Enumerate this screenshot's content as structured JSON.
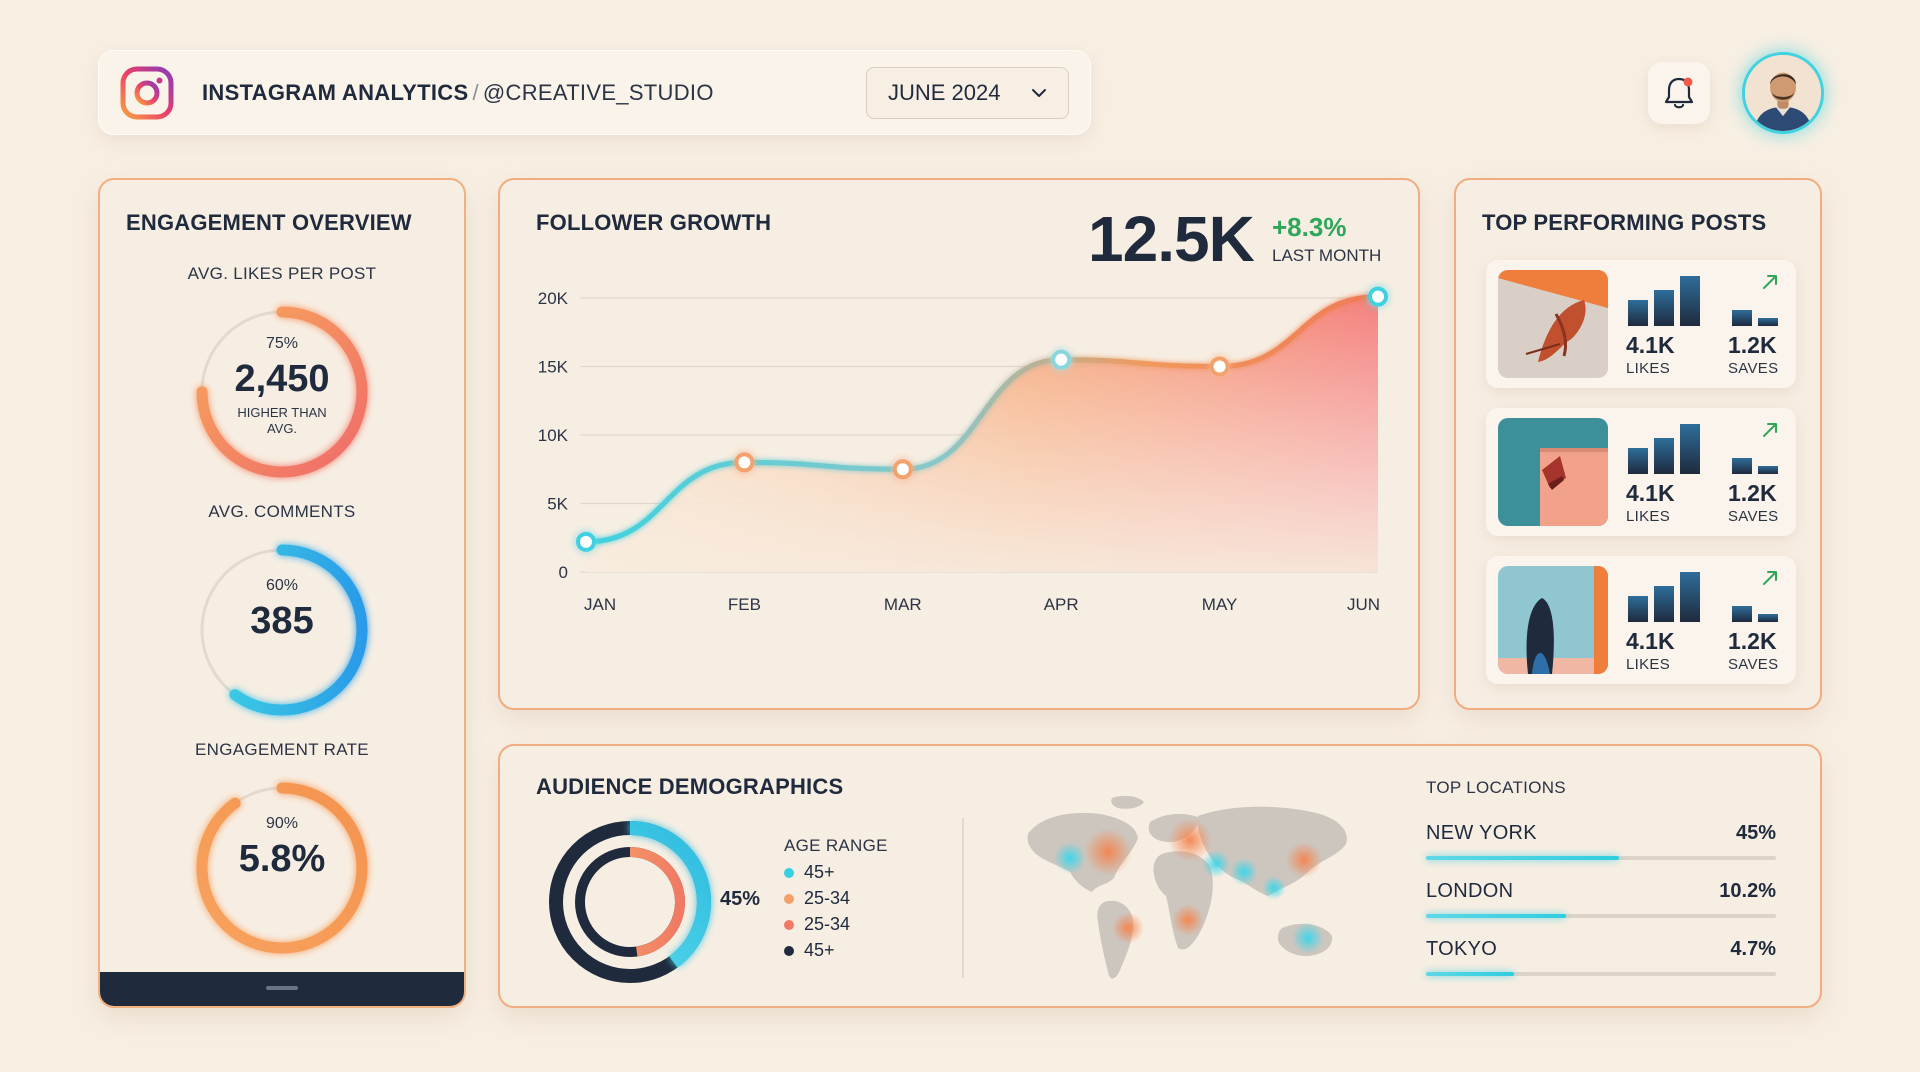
{
  "header": {
    "title": "INSTAGRAM ANALYTICS",
    "separator": "/",
    "handle": "@CREATIVE_STUDIO",
    "month": "JUNE 2024",
    "icons": [
      "instagram-logo-icon",
      "chevron-down-icon",
      "bell-icon"
    ]
  },
  "engagement": {
    "title": "ENGAGEMENT OVERVIEW",
    "metrics": [
      {
        "label": "AVG. LIKES PER POST",
        "percent_text": "75%",
        "value": "2,450",
        "note": "HIGHER THAN AVG.",
        "progress": 0.75
      },
      {
        "label": "AVG. COMMENTS",
        "percent_text": "60%",
        "value": "385",
        "note": "",
        "progress": 0.6
      },
      {
        "label": "ENGAGEMENT RATE",
        "percent_text": "90%",
        "value": "5.8%",
        "note": "",
        "progress": 0.9
      }
    ]
  },
  "follower": {
    "title": "FOLLOWER GROWTH",
    "total": "12.5K",
    "change": "+8.3%",
    "change_label": "LAST MONTH"
  },
  "chart_data": {
    "type": "area",
    "title": "FOLLOWER GROWTH",
    "categories": [
      "JAN",
      "FEB",
      "MAR",
      "APR",
      "MAY",
      "JUN"
    ],
    "values": [
      2200,
      8000,
      7500,
      15500,
      15000,
      20100
    ],
    "y_ticks": [
      "0",
      "5K",
      "10K",
      "15K",
      "20K"
    ],
    "y_tick_values": [
      0,
      5000,
      10000,
      15000,
      20000
    ],
    "ylim": [
      0,
      20000
    ],
    "grid": true
  },
  "top_posts": {
    "title": "TOP PERFORMING POSTS",
    "posts": [
      {
        "likes": "4.1K",
        "likes_label": "LIKES",
        "saves": "1.2K",
        "saves_label": "SAVES",
        "trend_icon": "arrow-up-right-icon"
      },
      {
        "likes": "4.1K",
        "likes_label": "LIKES",
        "saves": "1.2K",
        "saves_label": "SAVES",
        "trend_icon": "arrow-up-right-icon"
      },
      {
        "likes": "4.1K",
        "likes_label": "LIKES",
        "saves": "1.2K",
        "saves_label": "SAVES",
        "trend_icon": "arrow-up-right-icon"
      }
    ]
  },
  "demographics": {
    "title": "AUDIENCE DEMOGRAPHICS",
    "donut_value": "45%",
    "age_title": "AGE RANGE",
    "age_items": [
      {
        "label": "45+",
        "color": "#38cfe2"
      },
      {
        "label": "25-34",
        "color": "#f4a06a"
      },
      {
        "label": "25-34",
        "color": "#f07a64"
      },
      {
        "label": "45+",
        "color": "#1f2a3d"
      }
    ],
    "locations_title": "TOP LOCATIONS",
    "locations": [
      {
        "name": "NEW YORK",
        "value": "45%",
        "share": 0.55
      },
      {
        "name": "LONDON",
        "value": "10.2%",
        "share": 0.4
      },
      {
        "name": "TOKYO",
        "value": "4.7%",
        "share": 0.25
      }
    ]
  },
  "colors": {
    "navy": "#1f2a3d",
    "cyan": "#38cfe2",
    "orange": "#f4a06a",
    "coral": "#f07a64",
    "green": "#2fa75a"
  }
}
